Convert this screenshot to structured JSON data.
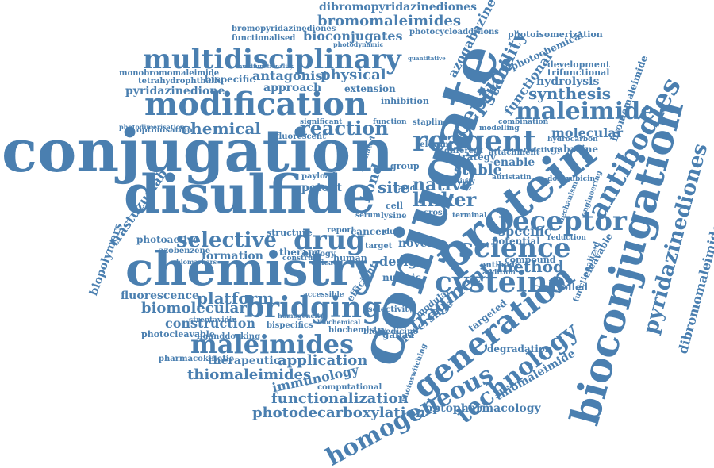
{
  "colors": {
    "word": "#4a7fb0",
    "background": "#ffffff"
  },
  "words": {
    "conjugation": "conjugation",
    "disulfide": "disulfide",
    "chemistry": "chemistry",
    "modification": "modification",
    "multidisciplinary": "multidisciplinary",
    "conjugate": "conjugate",
    "protein": "protein",
    "bioconjugation": "bioconjugation",
    "bridging": "bridging",
    "cysteine": "cysteine",
    "maleimides": "maleimides",
    "generation": "generation",
    "reagent": "reagent",
    "antibodies": "antibodies",
    "pyridazinediones": "pyridazinediones",
    "homogeneous": "homogeneous",
    "technology": "technology",
    "receptor": "receptor",
    "science": "science",
    "selective": "selective",
    "drug": "drug",
    "maleimide": "maleimide",
    "peptide": "peptide",
    "stability": "stability",
    "synthesis": "synthesis",
    "functional": "functional",
    "bromomaleimides": "bromomaleimides",
    "dibromopyridazinediones": "dibromopyridazinediones",
    "bioconjugates": "bioconjugates",
    "functionalised": "functionalised",
    "bromopyridazinediones": "bromopyridazinediones",
    "photocycloadditions": "photocycloadditions",
    "azogabazine": "azogabazine",
    "photoisomerization": "photoisomerization",
    "photochemical": "photochemical",
    "antagonist": "antagonist",
    "physical": "physical",
    "approach": "approach",
    "extension": "extension",
    "inhibition": "inhibition",
    "monobromomaleimide": "monobromomaleimide",
    "tetrahydrophthalic": "tetrahydrophthalic",
    "pyridazinedione": "pyridazinedione",
    "bispecific": "bispecific",
    "chemical": "chemical",
    "reaction": "reaction",
    "optimisation": "optimisation",
    "molecular": "molecular",
    "hydrolysis": "hydrolysis",
    "development": "development",
    "trifunctional": "trifunctional",
    "bromomaleimide": "bromomaleimide",
    "gabazine": "gabazine",
    "fluorescent": "fluorescent",
    "significant": "significant",
    "modelling": "modelling",
    "combination": "combination",
    "hydrocarbon": "hydrocarbon",
    "reactivity": "reactivity",
    "enable": "enable",
    "stable": "stable",
    "strategy": "strategy",
    "native": "native",
    "linker": "linker",
    "auristatin": "auristatin",
    "doxorubicin": "doxorubicin",
    "specific": "specific",
    "site": "site",
    "bond": "bond",
    "potent": "potent",
    "payload": "payload",
    "fragment": "fragment",
    "method": "method",
    "reversible": "reversible",
    "trastuzumab": "trastuzumab",
    "photoactive": "photoactive",
    "biopolymers": "biopolymers",
    "platform": "platform",
    "formation": "formation",
    "azobenzene": "azobenzene",
    "structure": "structure",
    "therapy": "therapy",
    "cancer": "cancer",
    "novel": "novel",
    "human": "human",
    "dual": "dual",
    "design": "design",
    "nucleic": "nucleic",
    "potential": "potential",
    "reduction": "reduction",
    "compound": "compound",
    "antibody": "antibody",
    "addition": "addition",
    "cleavable": "cleavable",
    "controlled": "controlled",
    "functionalized": "functionalized",
    "fluorescence": "fluorescence",
    "biomolecular": "biomolecular",
    "construction": "construction",
    "photocleavable": "photocleavable",
    "bispecifics": "bispecifics",
    "ligand": "liganddocking",
    "pharmacokinetic": "pharmacokinetic",
    "therapeutic": "therapeutic",
    "application": "application",
    "thiomaleimides": "thiomaleimides",
    "immunology": "immunology",
    "functionalization": "functionalization",
    "photodecarboxylation": "photodecarboxylation",
    "optopharmacology": "optopharmacology",
    "computational": "computational",
    "degradation": "degradation",
    "thiomaleimide": "thiomaleimide",
    "targeted": "targeted",
    "gabaa": "gabaa",
    "dibromomaleimide": "dibromomaleimide",
    "selectivity": "selectivity",
    "biomedicine": "biomedicine",
    "photoswitching": "photoswitching",
    "modular": "modular",
    "lysine": "lysine",
    "cross": "cross",
    "group": "group",
    "cell": "cell",
    "serum": "serum",
    "acid": "acid",
    "mechanism": "mechanism",
    "engineering": "engineering",
    "streptavidin": "streptavidin",
    "biochemistry": "biochemistry",
    "biochemical": "biochemical",
    "homogeneity": "homogeneity",
    "efficient": "efficient",
    "accessible": "accessible",
    "efficacy": "efficacy",
    "construct": "construct",
    "biology": "biology",
    "target": "target",
    "report": "report",
    "selected": "selected",
    "different": "different",
    "relevant": "relevant",
    "stapling": "stapling",
    "function": "function",
    "attachment": "attachment",
    "photodimerisation": "photodimerisation",
    "proteins": "proteins",
    "mediated": "mediated",
    "conjugates": "conjugates",
    "control": "control",
    "terminal": "terminal",
    "activity": "activity",
    "biomarkers": "biomarkers",
    "photolysis": "photolysis",
    "photodynamic": "photodynamic",
    "quantitative": "quantitative",
    "multifunctionality": "multifunctionality"
  }
}
